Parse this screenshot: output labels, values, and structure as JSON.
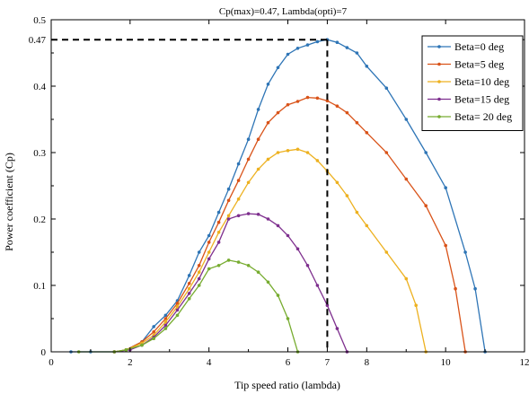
{
  "chart_data": {
    "type": "line",
    "title": "Cp(max)=0.47, Lambda(opti)=7",
    "xlabel": "Tip speed ratio (lambda)",
    "ylabel": "Power coefficient (Cp)",
    "xlim": [
      0,
      12
    ],
    "ylim": [
      0,
      0.5
    ],
    "xticks": [
      "0",
      "2",
      "4",
      "6",
      "7",
      "8",
      "10",
      "12"
    ],
    "yticks": [
      "0",
      "0.1",
      "0.2",
      "0.3",
      "0.4",
      "0.47",
      "0.5"
    ],
    "grid": false,
    "legend_position": "top-right",
    "optimum": {
      "x": 7,
      "y": 0.47
    },
    "series": [
      {
        "name": "Beta=0 deg",
        "color": "#2E75B6",
        "points": [
          [
            0.5,
            0
          ],
          [
            1,
            0
          ],
          [
            1.6,
            0
          ],
          [
            1.9,
            0.003
          ],
          [
            2.3,
            0.015
          ],
          [
            2.6,
            0.038
          ],
          [
            2.9,
            0.055
          ],
          [
            3.2,
            0.077
          ],
          [
            3.5,
            0.115
          ],
          [
            3.75,
            0.15
          ],
          [
            4.0,
            0.175
          ],
          [
            4.25,
            0.21
          ],
          [
            4.5,
            0.245
          ],
          [
            4.75,
            0.283
          ],
          [
            5.0,
            0.32
          ],
          [
            5.25,
            0.365
          ],
          [
            5.5,
            0.403
          ],
          [
            5.75,
            0.428
          ],
          [
            6.0,
            0.448
          ],
          [
            6.25,
            0.457
          ],
          [
            6.5,
            0.462
          ],
          [
            6.75,
            0.467
          ],
          [
            7.0,
            0.47
          ],
          [
            7.25,
            0.466
          ],
          [
            7.5,
            0.458
          ],
          [
            7.75,
            0.45
          ],
          [
            8.0,
            0.43
          ],
          [
            8.5,
            0.397
          ],
          [
            9.0,
            0.35
          ],
          [
            9.5,
            0.3
          ],
          [
            10.0,
            0.247
          ],
          [
            10.5,
            0.15
          ],
          [
            10.75,
            0.095
          ],
          [
            11.0,
            0
          ]
        ]
      },
      {
        "name": "Beta=5 deg",
        "color": "#D95319",
        "points": [
          [
            1.6,
            0
          ],
          [
            1.9,
            0.003
          ],
          [
            2.3,
            0.015
          ],
          [
            2.6,
            0.03
          ],
          [
            2.9,
            0.05
          ],
          [
            3.2,
            0.073
          ],
          [
            3.5,
            0.103
          ],
          [
            3.75,
            0.13
          ],
          [
            4.0,
            0.165
          ],
          [
            4.25,
            0.195
          ],
          [
            4.5,
            0.228
          ],
          [
            4.75,
            0.258
          ],
          [
            5.0,
            0.29
          ],
          [
            5.25,
            0.32
          ],
          [
            5.5,
            0.345
          ],
          [
            5.75,
            0.36
          ],
          [
            6.0,
            0.372
          ],
          [
            6.25,
            0.377
          ],
          [
            6.5,
            0.383
          ],
          [
            6.75,
            0.382
          ],
          [
            7.0,
            0.378
          ],
          [
            7.25,
            0.37
          ],
          [
            7.5,
            0.36
          ],
          [
            7.75,
            0.345
          ],
          [
            8.0,
            0.33
          ],
          [
            8.5,
            0.3
          ],
          [
            9.0,
            0.26
          ],
          [
            9.5,
            0.22
          ],
          [
            10.0,
            0.16
          ],
          [
            10.25,
            0.095
          ],
          [
            10.5,
            0
          ]
        ]
      },
      {
        "name": "Beta=10 deg",
        "color": "#EDB120",
        "points": [
          [
            1.6,
            0
          ],
          [
            1.9,
            0.003
          ],
          [
            2.3,
            0.013
          ],
          [
            2.6,
            0.025
          ],
          [
            2.9,
            0.045
          ],
          [
            3.2,
            0.068
          ],
          [
            3.5,
            0.095
          ],
          [
            3.75,
            0.12
          ],
          [
            4.0,
            0.15
          ],
          [
            4.25,
            0.18
          ],
          [
            4.5,
            0.205
          ],
          [
            4.75,
            0.23
          ],
          [
            5.0,
            0.255
          ],
          [
            5.25,
            0.275
          ],
          [
            5.5,
            0.29
          ],
          [
            5.75,
            0.3
          ],
          [
            6.0,
            0.303
          ],
          [
            6.25,
            0.305
          ],
          [
            6.5,
            0.3
          ],
          [
            6.75,
            0.288
          ],
          [
            7.0,
            0.272
          ],
          [
            7.25,
            0.255
          ],
          [
            7.5,
            0.235
          ],
          [
            7.75,
            0.21
          ],
          [
            8.0,
            0.19
          ],
          [
            8.5,
            0.15
          ],
          [
            9.0,
            0.11
          ],
          [
            9.25,
            0.07
          ],
          [
            9.5,
            0
          ]
        ]
      },
      {
        "name": "Beta=15 deg",
        "color": "#7E2F8E",
        "points": [
          [
            1.6,
            0
          ],
          [
            2.0,
            0.003
          ],
          [
            2.3,
            0.01
          ],
          [
            2.6,
            0.022
          ],
          [
            2.9,
            0.04
          ],
          [
            3.2,
            0.063
          ],
          [
            3.5,
            0.088
          ],
          [
            3.75,
            0.11
          ],
          [
            4.0,
            0.14
          ],
          [
            4.25,
            0.165
          ],
          [
            4.5,
            0.2
          ],
          [
            4.75,
            0.205
          ],
          [
            5.0,
            0.208
          ],
          [
            5.25,
            0.207
          ],
          [
            5.5,
            0.2
          ],
          [
            5.75,
            0.19
          ],
          [
            6.0,
            0.175
          ],
          [
            6.25,
            0.155
          ],
          [
            6.5,
            0.13
          ],
          [
            6.75,
            0.1
          ],
          [
            7.0,
            0.07
          ],
          [
            7.25,
            0.035
          ],
          [
            7.5,
            0
          ]
        ]
      },
      {
        "name": "Beta= 20 deg",
        "color": "#77AC30",
        "points": [
          [
            0.7,
            0
          ],
          [
            1.6,
            0
          ],
          [
            1.9,
            0.003
          ],
          [
            2.3,
            0.01
          ],
          [
            2.6,
            0.02
          ],
          [
            2.9,
            0.035
          ],
          [
            3.2,
            0.055
          ],
          [
            3.5,
            0.08
          ],
          [
            3.75,
            0.1
          ],
          [
            4.0,
            0.125
          ],
          [
            4.25,
            0.13
          ],
          [
            4.5,
            0.138
          ],
          [
            4.75,
            0.135
          ],
          [
            5.0,
            0.13
          ],
          [
            5.25,
            0.12
          ],
          [
            5.5,
            0.105
          ],
          [
            5.75,
            0.085
          ],
          [
            6.0,
            0.05
          ],
          [
            6.25,
            0.0
          ]
        ]
      }
    ]
  }
}
